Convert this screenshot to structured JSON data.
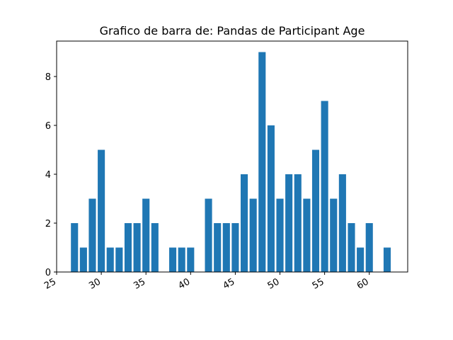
{
  "chart_data": {
    "type": "bar",
    "title": "Grafico de barra de: Pandas de Participant Age",
    "xlabel": "",
    "ylabel": "",
    "x": [
      27,
      28,
      29,
      30,
      31,
      32,
      33,
      34,
      35,
      36,
      38,
      39,
      40,
      42,
      43,
      44,
      45,
      46,
      47,
      48,
      49,
      50,
      51,
      52,
      53,
      54,
      55,
      56,
      57,
      58,
      59,
      60,
      62
    ],
    "values": [
      2,
      1,
      3,
      5,
      1,
      1,
      2,
      2,
      3,
      2,
      1,
      1,
      1,
      3,
      2,
      2,
      2,
      4,
      3,
      9,
      6,
      3,
      4,
      4,
      3,
      5,
      7,
      3,
      4,
      2,
      1,
      2,
      1
    ],
    "xlim": [
      25,
      64.3
    ],
    "ylim": [
      0,
      9.45
    ],
    "x_ticks": [
      25,
      30,
      35,
      40,
      45,
      50,
      55,
      60
    ],
    "x_tick_labels": [
      "25",
      "30",
      "35",
      "40",
      "45",
      "50",
      "55",
      "60"
    ],
    "y_ticks": [
      0,
      2,
      4,
      6,
      8
    ],
    "y_tick_labels": [
      "0",
      "2",
      "4",
      "6",
      "8"
    ],
    "bar_color": "#1f77b4",
    "grid": false,
    "legend": "none"
  }
}
